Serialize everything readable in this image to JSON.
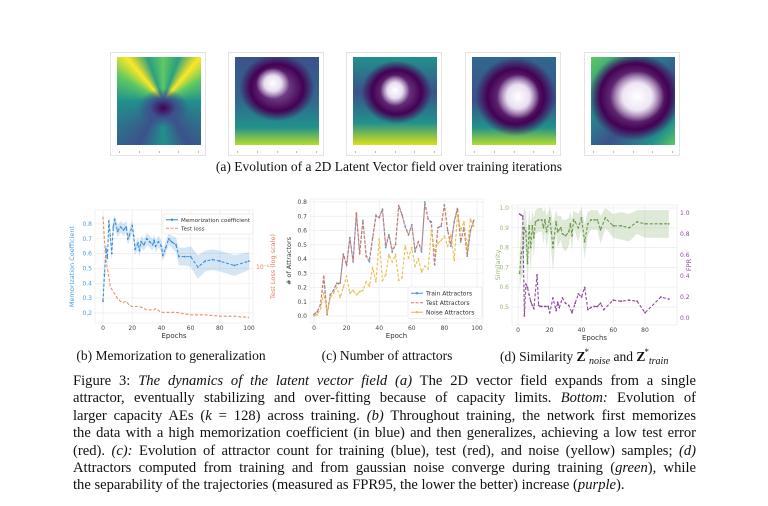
{
  "panel_a": {
    "caption": "(a) Evolution of a 2D Latent Vector field over training iterations",
    "frames": [
      "iteration-1",
      "iteration-2",
      "iteration-3",
      "iteration-4",
      "iteration-5"
    ],
    "colormap": [
      "#fde725",
      "#5ec962",
      "#21918c",
      "#3b528b",
      "#440154",
      "#ffffff"
    ]
  },
  "panel_b": {
    "caption": "(b) Memorization to generalization"
  },
  "panel_c": {
    "caption": "(c) Number of attractors"
  },
  "panel_d": {
    "caption_prefix": "(d) Similarity ",
    "z": "Z",
    "star": "*",
    "sub_noise": "noise",
    "and": " and ",
    "sub_train": "train"
  },
  "chart_data": [
    {
      "type": "line",
      "id": "b",
      "xlabel": "Epochs",
      "ylabel": "Memorization Coefficient",
      "y2label": "Test Loss (log scale)",
      "xticks": [
        "0",
        "20",
        "40",
        "60",
        "80",
        "100"
      ],
      "yticks": [
        "0.2",
        "0.3",
        "0.4",
        "0.5",
        "0.6",
        "0.7",
        "0.8"
      ],
      "y2ticks": [
        "10⁻¹"
      ],
      "xlim": [
        0,
        100
      ],
      "ylim": [
        0.14,
        0.86
      ],
      "y2lim": [
        0.03,
        0.31
      ],
      "y2scale": "log",
      "grid": true,
      "legend": "top-right",
      "series": [
        {
          "name": "Memorization coefficient",
          "color": "#3a8fd8",
          "style": "dashed-marker",
          "x": [
            0,
            1,
            2,
            3,
            4,
            5,
            6,
            7,
            8,
            10,
            12,
            14,
            16,
            17,
            18,
            20,
            21,
            22,
            24,
            25,
            26,
            28,
            30,
            32,
            34,
            35,
            36,
            38,
            40,
            41,
            43,
            45,
            47,
            50,
            52,
            56,
            60,
            65,
            70,
            75,
            80,
            90,
            100
          ],
          "y": [
            0.28,
            0.46,
            0.63,
            0.57,
            0.82,
            0.72,
            0.6,
            0.78,
            0.83,
            0.75,
            0.78,
            0.76,
            0.78,
            0.7,
            0.72,
            0.79,
            0.72,
            0.63,
            0.67,
            0.62,
            0.68,
            0.66,
            0.7,
            0.68,
            0.66,
            0.69,
            0.65,
            0.68,
            0.65,
            0.59,
            0.64,
            0.7,
            0.68,
            0.66,
            0.58,
            0.58,
            0.58,
            0.51,
            0.55,
            0.56,
            0.55,
            0.52,
            0.55
          ],
          "spread": [
            0.05,
            0.05,
            0.05,
            0.05,
            0.05,
            0.05,
            0.05,
            0.05,
            0.05,
            0.04,
            0.04,
            0.04,
            0.04,
            0.04,
            0.04,
            0.04,
            0.04,
            0.04,
            0.04,
            0.04,
            0.04,
            0.04,
            0.04,
            0.04,
            0.04,
            0.04,
            0.04,
            0.04,
            0.04,
            0.04,
            0.04,
            0.04,
            0.04,
            0.05,
            0.06,
            0.06,
            0.07,
            0.08,
            0.07,
            0.07,
            0.07,
            0.07,
            0.06
          ]
        },
        {
          "name": "Test loss",
          "color": "#f0896a",
          "style": "dashed",
          "axis": "y2",
          "x": [
            0,
            1,
            2,
            3,
            4,
            5,
            7,
            10,
            12,
            14,
            16,
            18,
            20,
            25,
            30,
            35,
            36,
            40,
            45,
            50,
            55,
            60,
            70,
            80,
            90,
            100
          ],
          "y": [
            0.3,
            0.18,
            0.114,
            0.097,
            0.08,
            0.065,
            0.058,
            0.05,
            0.047,
            0.046,
            0.047,
            0.043,
            0.042,
            0.042,
            0.039,
            0.039,
            0.04,
            0.037,
            0.037,
            0.037,
            0.036,
            0.035,
            0.035,
            0.034,
            0.034,
            0.033
          ]
        }
      ]
    },
    {
      "type": "line",
      "id": "c",
      "xlabel": "Epoch",
      "ylabel": "# of Attractors",
      "xticks": [
        "0",
        "20",
        "40",
        "60",
        "80",
        "100"
      ],
      "yticks": [
        "0.0",
        "0.1",
        "0.2",
        "0.3",
        "0.4",
        "0.5",
        "0.6",
        "0.7",
        "0.8"
      ],
      "xlim": [
        0,
        100
      ],
      "ylim": [
        0,
        0.8
      ],
      "grid": true,
      "legend": "bottom-right",
      "x": [
        0,
        2,
        4,
        6,
        8,
        10,
        12,
        14,
        16,
        18,
        20,
        22,
        24,
        26,
        28,
        30,
        32,
        34,
        36,
        38,
        40,
        42,
        44,
        46,
        48,
        50,
        52,
        54,
        56,
        58,
        60,
        62,
        64,
        66,
        68,
        70,
        72,
        74,
        76,
        78,
        80,
        82,
        84,
        86,
        88,
        90,
        92,
        94,
        96,
        98
      ],
      "series": [
        {
          "name": "Train Attractors",
          "color": "#4a9de0",
          "style": "dashed-marker",
          "y": [
            0.01,
            0.03,
            0.08,
            0.27,
            0.01,
            0.15,
            0.18,
            0.23,
            0.23,
            0.43,
            0.36,
            0.55,
            0.38,
            0.72,
            0.44,
            0.67,
            0.42,
            0.38,
            0.55,
            0.7,
            0.69,
            0.75,
            0.48,
            0.57,
            0.45,
            0.5,
            0.77,
            0.71,
            0.63,
            0.57,
            0.64,
            0.45,
            0.52,
            0.45,
            0.8,
            0.68,
            0.66,
            0.36,
            0.62,
            0.63,
            0.78,
            0.6,
            0.49,
            0.66,
            0.75,
            0.52,
            0.62,
            0.42,
            0.6,
            0.67
          ]
        },
        {
          "name": "Test Attractors",
          "color": "#e0735a",
          "style": "dashed",
          "y": [
            0.01,
            0.03,
            0.08,
            0.29,
            0.01,
            0.15,
            0.18,
            0.23,
            0.22,
            0.44,
            0.35,
            0.55,
            0.38,
            0.73,
            0.43,
            0.67,
            0.42,
            0.4,
            0.55,
            0.71,
            0.69,
            0.75,
            0.49,
            0.57,
            0.46,
            0.5,
            0.78,
            0.71,
            0.62,
            0.57,
            0.64,
            0.46,
            0.52,
            0.46,
            0.79,
            0.68,
            0.65,
            0.36,
            0.62,
            0.63,
            0.78,
            0.6,
            0.5,
            0.66,
            0.76,
            0.52,
            0.62,
            0.43,
            0.6,
            0.67
          ]
        },
        {
          "name": "Noise Attractors",
          "color": "#e8bf4f",
          "style": "dashed-marker",
          "y": [
            0.0,
            0.01,
            0.05,
            0.16,
            0.02,
            0.13,
            0.16,
            0.2,
            0.13,
            0.2,
            0.28,
            0.16,
            0.18,
            0.15,
            0.17,
            0.18,
            0.24,
            0.21,
            0.34,
            0.24,
            0.54,
            0.25,
            0.29,
            0.43,
            0.38,
            0.43,
            0.25,
            0.27,
            0.49,
            0.41,
            0.48,
            0.35,
            0.4,
            0.31,
            0.35,
            0.33,
            0.6,
            0.46,
            0.51,
            0.53,
            0.56,
            0.49,
            0.57,
            0.39,
            0.71,
            0.6,
            0.66,
            0.47,
            0.68,
            0.63
          ]
        }
      ]
    },
    {
      "type": "line",
      "id": "d",
      "xlabel": "Epochs",
      "ylabel": "Similarity",
      "y2label": "FPR",
      "xticks": [
        "0",
        "20",
        "40",
        "60",
        "80"
      ],
      "yticks": [
        "0.5",
        "0.6",
        "0.7",
        "0.8",
        "0.9",
        "1.0"
      ],
      "y2ticks": [
        "0.0",
        "0.2",
        "0.4",
        "0.6",
        "0.8",
        "1.0"
      ],
      "xlim": [
        0,
        100
      ],
      "ylim": [
        0.45,
        1.0
      ],
      "y2lim": [
        0,
        1
      ],
      "grid": true,
      "series": [
        {
          "name": "Similarity",
          "color": "#6a9a4c",
          "style": "dashed-marker",
          "x": [
            1,
            2,
            3,
            4,
            5,
            6,
            7,
            8,
            9,
            10,
            11,
            13,
            15,
            16,
            17,
            18,
            20,
            21,
            22,
            24,
            25,
            27,
            28,
            30,
            32,
            33,
            34,
            35,
            36,
            38,
            40,
            42,
            44,
            46,
            48,
            50,
            52,
            55,
            60,
            65,
            70,
            75,
            80,
            90,
            95
          ],
          "y": [
            0.67,
            0.77,
            0.8,
            0.9,
            0.88,
            0.72,
            0.91,
            0.8,
            0.91,
            0.85,
            0.93,
            0.94,
            0.94,
            0.9,
            0.94,
            0.88,
            0.95,
            0.88,
            0.8,
            0.93,
            0.88,
            0.9,
            0.87,
            0.86,
            0.88,
            0.92,
            0.86,
            0.94,
            0.93,
            0.9,
            0.95,
            0.83,
            0.92,
            0.94,
            0.94,
            0.94,
            0.89,
            0.95,
            0.91,
            0.91,
            0.9,
            0.93,
            0.92,
            0.92,
            0.92
          ],
          "spread": [
            0.1,
            0.12,
            0.15,
            0.1,
            0.1,
            0.15,
            0.1,
            0.12,
            0.08,
            0.1,
            0.06,
            0.06,
            0.06,
            0.08,
            0.06,
            0.08,
            0.05,
            0.1,
            0.12,
            0.06,
            0.08,
            0.06,
            0.07,
            0.08,
            0.07,
            0.06,
            0.08,
            0.05,
            0.05,
            0.07,
            0.05,
            0.09,
            0.06,
            0.05,
            0.05,
            0.05,
            0.07,
            0.05,
            0.06,
            0.07,
            0.07,
            0.06,
            0.07,
            0.07,
            0.07
          ]
        },
        {
          "name": "FPR",
          "color": "#8e48a0",
          "style": "dashed-marker",
          "axis": "y2",
          "x": [
            1,
            2,
            3,
            4,
            5,
            6,
            7,
            8,
            9,
            10,
            12,
            13,
            14,
            15,
            17,
            19,
            20,
            22,
            24,
            25,
            26,
            28,
            30,
            32,
            34,
            36,
            38,
            40,
            42,
            44,
            46,
            48,
            50,
            52,
            54,
            60,
            65,
            70,
            75,
            80,
            90,
            95
          ],
          "y": [
            0.99,
            0.98,
            0.97,
            0.02,
            0.32,
            0.29,
            0.22,
            0.16,
            0.12,
            0.09,
            0.41,
            0.12,
            0.11,
            0.11,
            0.11,
            0.11,
            0.05,
            0.19,
            0.07,
            0.15,
            0.1,
            0.19,
            0.14,
            0.12,
            0.05,
            0.14,
            0.23,
            0.2,
            0.29,
            0.08,
            0.1,
            0.11,
            0.11,
            0.14,
            0.08,
            0.17,
            0.16,
            0.17,
            0.16,
            0.05,
            0.2,
            0.18
          ]
        }
      ]
    }
  ],
  "figure_caption": {
    "lines": [
      [
        {
          "t": "Figure 3: "
        },
        {
          "t": "The dynamics of the latent vector field (a)",
          "i": true
        },
        {
          "t": " The 2D vector field expands from a single"
        }
      ],
      [
        {
          "t": "attractor, eventually stabilizing and over-fitting because of capacity limits. "
        },
        {
          "t": "Bottom:",
          "i": true
        },
        {
          "t": " Evolution of"
        }
      ],
      [
        {
          "t": "larger capacity AEs ("
        },
        {
          "t": "k",
          "i": true
        },
        {
          "t": " = 128) across training. "
        },
        {
          "t": "(b)",
          "i": true
        },
        {
          "t": " Throughout training, the network first memorizes"
        }
      ],
      [
        {
          "t": "the data with a high memorization coefficient (in blue) and then generalizes, achieving a low test error"
        }
      ],
      [
        {
          "t": "(red). "
        },
        {
          "t": "(c):",
          "i": true
        },
        {
          "t": " Evolution of attractor count for training (blue), test (red), and noise (yellow) samples; "
        },
        {
          "t": "(d)",
          "i": true
        }
      ],
      [
        {
          "t": "Attractors computed from training and from gaussian noise converge during training ("
        },
        {
          "t": "green",
          "i": true
        },
        {
          "t": "), while"
        }
      ],
      [
        {
          "t": "the separability of the trajectories (measured as FPR95, the lower the better) increase ("
        },
        {
          "t": "purple",
          "i": true
        },
        {
          "t": ")."
        }
      ]
    ]
  }
}
